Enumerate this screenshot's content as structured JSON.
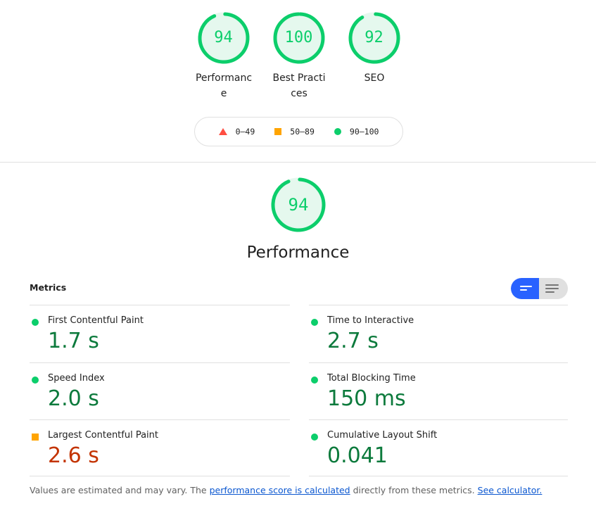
{
  "summary": [
    {
      "label": "Performance",
      "score": 94
    },
    {
      "label": "Best Practices",
      "score": 100
    },
    {
      "label": "SEO",
      "score": 92
    }
  ],
  "legend": [
    {
      "icon": "triangle-icon",
      "range": "0–49"
    },
    {
      "icon": "square-icon",
      "range": "50–89"
    },
    {
      "icon": "circle-icon",
      "range": "90–100"
    }
  ],
  "category": {
    "title": "Performance",
    "score": 94
  },
  "metrics_header": "Metrics",
  "metrics": [
    {
      "name": "First Contentful Paint",
      "value": "1.7 s",
      "rating": "pass"
    },
    {
      "name": "Time to Interactive",
      "value": "2.7 s",
      "rating": "pass"
    },
    {
      "name": "Speed Index",
      "value": "2.0 s",
      "rating": "pass"
    },
    {
      "name": "Total Blocking Time",
      "value": "150 ms",
      "rating": "pass"
    },
    {
      "name": "Largest Contentful Paint",
      "value": "2.6 s",
      "rating": "average"
    },
    {
      "name": "Cumulative Layout Shift",
      "value": "0.041",
      "rating": "pass"
    }
  ],
  "footer": {
    "text1": "Values are estimated and may vary. The ",
    "link1": "performance score is calculated",
    "text2": " directly from these metrics. ",
    "link2": "See calculator."
  },
  "colors": {
    "pass": "#0cce6b",
    "average": "#ffa400",
    "fail": "#ff4e42"
  }
}
